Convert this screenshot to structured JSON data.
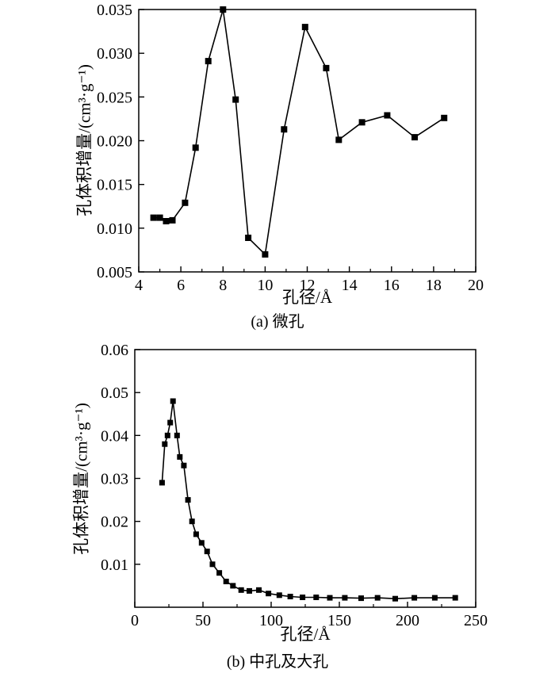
{
  "page": {
    "background": "#ffffff",
    "ink_color": "#000000"
  },
  "chart_data": [
    {
      "type": "line",
      "marker": "square",
      "color": "#000000",
      "caption": "(a) 微孔",
      "xlabel": "孔径/Å",
      "ylabel": "孔体积增量/(cm³·g⁻¹)",
      "xlim": [
        4,
        20
      ],
      "ylim": [
        0.005,
        0.035
      ],
      "grid": false,
      "legend": "none",
      "xtick_values": [
        4,
        6,
        8,
        10,
        12,
        14,
        16,
        18,
        20
      ],
      "xtick_labels": [
        "4",
        "6",
        "8",
        "10",
        "12",
        "14",
        "16",
        "18",
        "20"
      ],
      "x_minor_ticks": [
        5,
        7,
        9,
        11,
        13,
        15,
        17,
        19
      ],
      "ytick_values": [
        0.005,
        0.01,
        0.015,
        0.02,
        0.025,
        0.03,
        0.035
      ],
      "ytick_labels": [
        "0.005",
        "0.010",
        "0.015",
        "0.020",
        "0.025",
        "0.030",
        "0.035"
      ],
      "x": [
        4.7,
        5.0,
        5.3,
        5.6,
        6.2,
        6.7,
        7.3,
        8.0,
        8.6,
        9.2,
        10.0,
        10.9,
        11.9,
        12.9,
        13.5,
        14.6,
        15.8,
        17.1,
        18.5
      ],
      "y": [
        0.0112,
        0.0112,
        0.0108,
        0.0109,
        0.0129,
        0.0192,
        0.0291,
        0.035,
        0.0247,
        0.0089,
        0.007,
        0.0213,
        0.033,
        0.0283,
        0.0201,
        0.0221,
        0.0229,
        0.0204,
        0.0226
      ]
    },
    {
      "type": "line",
      "marker": "square",
      "color": "#000000",
      "caption": "(b) 中孔及大孔",
      "xlabel": "孔径/Å",
      "ylabel": "孔体积增量/(cm³·g⁻¹)",
      "xlim": [
        0,
        250
      ],
      "ylim": [
        0,
        0.06
      ],
      "grid": false,
      "legend": "none",
      "xtick_values": [
        0,
        50,
        100,
        150,
        200,
        250
      ],
      "xtick_labels": [
        "0",
        "50",
        "100",
        "150",
        "200",
        "250"
      ],
      "x_minor_ticks": [
        25,
        75,
        125,
        175,
        225
      ],
      "ytick_values": [
        0.01,
        0.02,
        0.03,
        0.04,
        0.05,
        0.06
      ],
      "ytick_labels": [
        "0.01",
        "0.02",
        "0.03",
        "0.04",
        "0.05",
        "0.06"
      ],
      "x": [
        20,
        22,
        24,
        26,
        28,
        31,
        33,
        36,
        39,
        42,
        45,
        49,
        53,
        57,
        62,
        67,
        72,
        78,
        84,
        91,
        98,
        106,
        114,
        123,
        133,
        143,
        154,
        166,
        178,
        191,
        205,
        220,
        235
      ],
      "y": [
        0.029,
        0.038,
        0.04,
        0.043,
        0.048,
        0.04,
        0.035,
        0.033,
        0.025,
        0.02,
        0.017,
        0.015,
        0.013,
        0.01,
        0.008,
        0.006,
        0.005,
        0.004,
        0.0038,
        0.004,
        0.0032,
        0.0028,
        0.0025,
        0.0023,
        0.0023,
        0.0022,
        0.0022,
        0.0021,
        0.0022,
        0.002,
        0.0022,
        0.0022,
        0.0022
      ]
    }
  ]
}
